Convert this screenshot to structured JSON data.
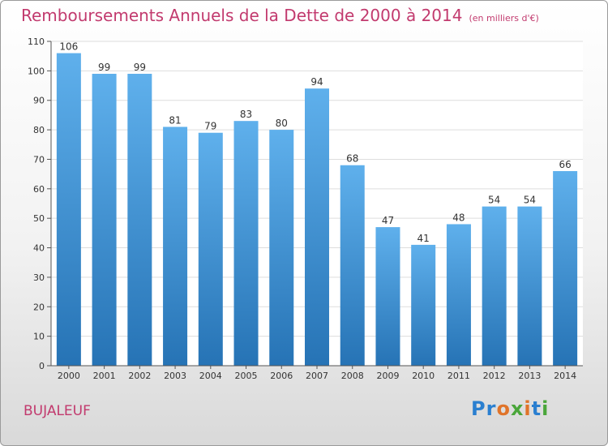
{
  "title": "Remboursements Annuels de la Dette de 2000 à 2014",
  "subtitle": "(en milliers d'€)",
  "commune": "BUJALEUF",
  "logo": {
    "letters": [
      "P",
      "r",
      "o",
      "x",
      "i",
      "t",
      "i"
    ],
    "colors": [
      "#2a7fd0",
      "#2a7fd0",
      "#e0742a",
      "#4aa63a",
      "#e0742a",
      "#2a7fd0",
      "#4aa63a"
    ]
  },
  "colors": {
    "bar_top": "#5fb0ec",
    "bar_bottom": "#2673b5",
    "grid": "#dddddd",
    "text_accent": "#c23a6e"
  },
  "chart_data": {
    "type": "bar",
    "title": "Remboursements Annuels de la Dette de 2000 à 2014",
    "subtitle": "(en milliers d'€)",
    "xlabel": "",
    "ylabel": "",
    "categories": [
      "2000",
      "2001",
      "2002",
      "2003",
      "2004",
      "2005",
      "2006",
      "2007",
      "2008",
      "2009",
      "2010",
      "2011",
      "2012",
      "2013",
      "2014"
    ],
    "values": [
      106,
      99,
      99,
      81,
      79,
      83,
      80,
      94,
      68,
      47,
      41,
      48,
      54,
      54,
      66
    ],
    "ylim": [
      0,
      110
    ],
    "yticks": [
      0,
      10,
      20,
      30,
      40,
      50,
      60,
      70,
      80,
      90,
      100,
      110
    ],
    "grid": true,
    "legend": "none"
  }
}
